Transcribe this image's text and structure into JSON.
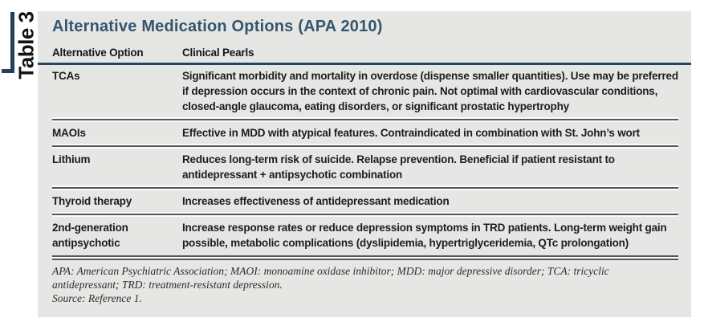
{
  "side_label": {
    "text": "Table 3"
  },
  "table": {
    "title": "Alternative Medication Options (APA 2010)",
    "columns": [
      "Alternative Option",
      "Clinical Pearls"
    ],
    "rows": [
      {
        "option": "TCAs",
        "pearls": "Significant morbidity and mortality in overdose (dispense smaller quantities). Use may be preferred if depression occurs in the context of chronic pain. Not optimal with cardiovascular conditions, closed-angle glaucoma, eating disorders, or significant prostatic hypertrophy"
      },
      {
        "option": "MAOIs",
        "pearls": "Effective in MDD with atypical features. Contraindicated in combination with St. John’s wort"
      },
      {
        "option": "Lithium",
        "pearls": "Reduces long-term risk of suicide. Relapse prevention. Beneficial if patient resistant to antidepressant + antipsychotic combination"
      },
      {
        "option": "Thyroid therapy",
        "pearls": "Increases effectiveness of antidepressant medication"
      },
      {
        "option": "2nd-generation antipsychotic",
        "pearls": "Increase response rates or reduce depression symptoms in TRD patients. Long-term weight gain possible, metabolic complications (dyslipidemia, hypertriglyceridemia, QTc prolongation)"
      }
    ],
    "footnotes": {
      "abbreviations": "APA: American Psychiatric Association; MAOI: monoamine oxidase inhibitor; MDD: major depressive disorder; TCA: tricyclic antidepressant; TRD: treatment-resistant depression.",
      "source": "Source: Reference 1."
    }
  },
  "colors": {
    "accent_navy": "#24415c",
    "title_blue": "#34566f",
    "panel_bg": "#e6e6e4",
    "rule_dark": "#53575a"
  }
}
